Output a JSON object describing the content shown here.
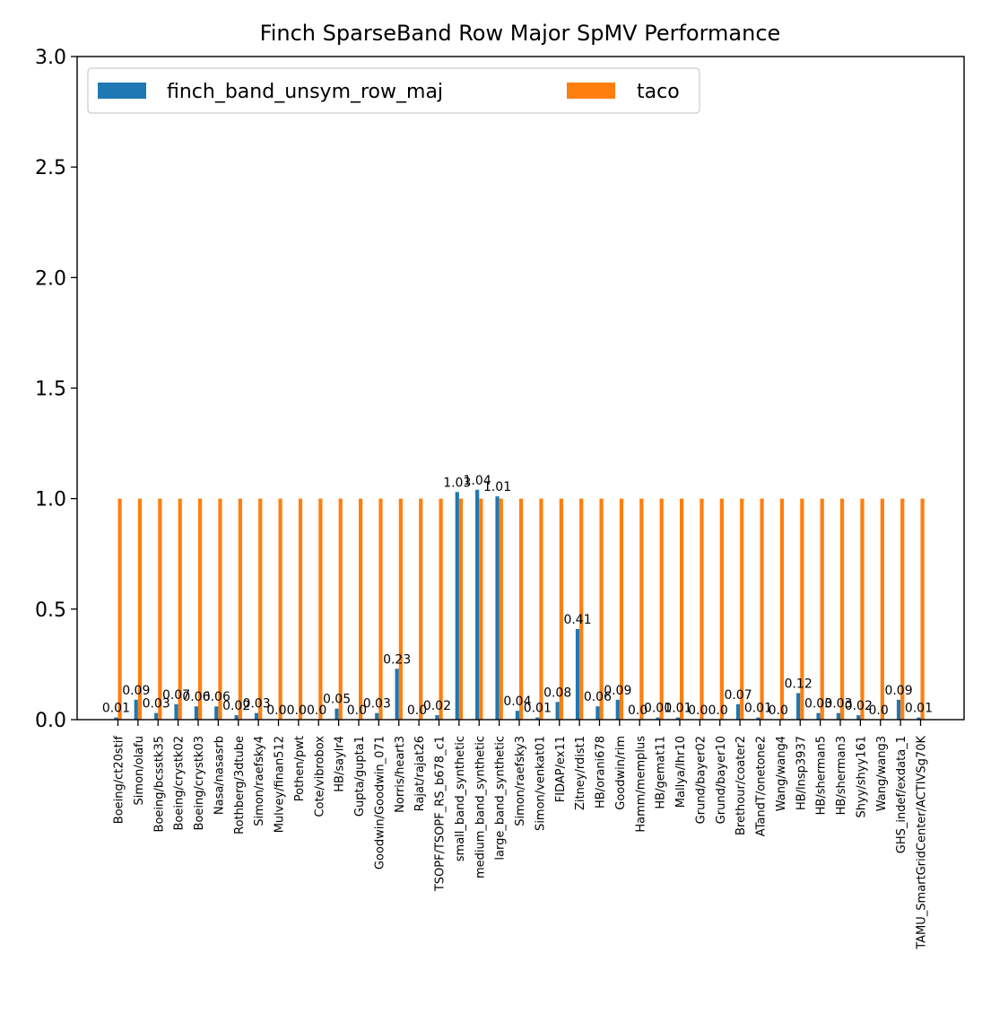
{
  "chart_data": {
    "type": "bar",
    "title": "Finch SparseBand Row Major SpMV Performance",
    "xlabel": "",
    "ylabel": "",
    "ylim": [
      0,
      3.0
    ],
    "yticks": [
      "0.0",
      "0.5",
      "1.0",
      "1.5",
      "2.0",
      "2.5",
      "3.0"
    ],
    "ytick_values": [
      0,
      0.5,
      1.0,
      1.5,
      2.0,
      2.5,
      3.0
    ],
    "legend_position": "top-left",
    "legend_columns": 2,
    "grid": false,
    "categories": [
      "Boeing/ct20stif",
      "Simon/olafu",
      "Boeing/bcsstk35",
      "Boeing/crystk02",
      "Boeing/crystk03",
      "Nasa/nasasrb",
      "Rothberg/3dtube",
      "Simon/raefsky4",
      "Mulvey/finan512",
      "Pothen/pwt",
      "Cote/vibrobox",
      "HB/saylr4",
      "Gupta/gupta1",
      "Goodwin/Goodwin_071",
      "Norris/heart3",
      "Rajat/rajat26",
      "TSOPF/TSOPF_RS_b678_c1",
      "small_band_synthetic",
      "medium_band_synthetic",
      "large_band_synthetic",
      "Simon/raefsky3",
      "Simon/venkat01",
      "FIDAP/ex11",
      "Zitney/rdist1",
      "HB/orani678",
      "Goodwin/rim",
      "Hamm/memplus",
      "HB/gemat11",
      "Mallya/lhr10",
      "Grund/bayer02",
      "Grund/bayer10",
      "Brethour/coater2",
      "ATandT/onetone2",
      "Wang/wang4",
      "HB/lnsp3937",
      "HB/sherman5",
      "HB/sherman3",
      "Shyy/shyy161",
      "Wang/wang3",
      "GHS_indef/exdata_1",
      "TAMU_SmartGridCenter/ACTIVSg70K"
    ],
    "series": [
      {
        "name": "finch_band_unsym_row_maj",
        "color": "#1f77b4",
        "values": [
          0.01,
          0.09,
          0.03,
          0.07,
          0.06,
          0.06,
          0.02,
          0.03,
          0.0,
          0.0,
          0.0,
          0.05,
          0.0,
          0.03,
          0.23,
          0.0,
          0.02,
          1.03,
          1.04,
          1.01,
          0.04,
          0.01,
          0.08,
          0.41,
          0.06,
          0.09,
          0.0,
          0.01,
          0.01,
          0.0,
          0.0,
          0.07,
          0.01,
          0.0,
          0.12,
          0.03,
          0.03,
          0.02,
          0.0,
          0.09,
          0.01
        ],
        "labels": [
          "0.01",
          "0.09",
          "0.03",
          "0.07",
          "0.06",
          "0.06",
          "0.02",
          "0.03",
          "0.0",
          "0.0",
          "0.0",
          "0.05",
          "0.0",
          "0.03",
          "0.23",
          "0.0",
          "0.02",
          "1.03",
          "1.04",
          "1.01",
          "0.04",
          "0.01",
          "0.08",
          "0.41",
          "0.06",
          "0.09",
          "0.0",
          "0.01",
          "0.01",
          "0.0",
          "0.0",
          "0.07",
          "0.01",
          "0.0",
          "0.12",
          "0.03",
          "0.03",
          "0.02",
          "0.0",
          "0.09",
          "0.01"
        ]
      },
      {
        "name": "taco",
        "color": "#ff7f0e",
        "values": [
          1,
          1,
          1,
          1,
          1,
          1,
          1,
          1,
          1,
          1,
          1,
          1,
          1,
          1,
          1,
          1,
          1,
          1,
          1,
          1,
          1,
          1,
          1,
          1,
          1,
          1,
          1,
          1,
          1,
          1,
          1,
          1,
          1,
          1,
          1,
          1,
          1,
          1,
          1,
          1,
          1
        ]
      }
    ]
  }
}
